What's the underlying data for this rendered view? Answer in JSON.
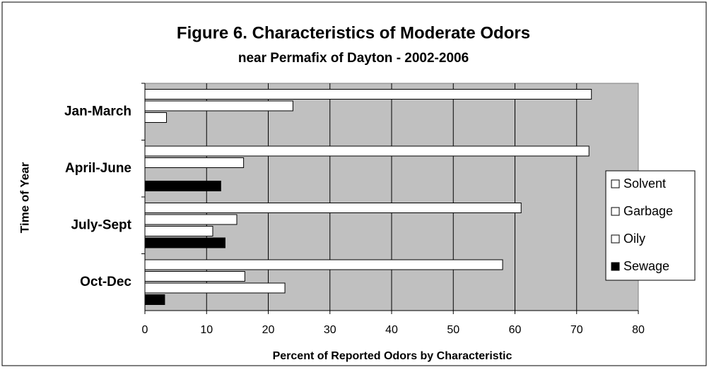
{
  "chart_data": {
    "type": "barh",
    "title": "Figure 6. Characteristics of Moderate Odors",
    "subtitle": "near Permafix of Dayton - 2002-2006",
    "x_label": "Percent of Reported Odors by Characteristic",
    "y_label": "Time of Year",
    "categories": [
      "Jan-March",
      "April-June",
      "July-Sept",
      "Oct-Dec"
    ],
    "series": [
      {
        "name": "Solvent",
        "color": "#ffffff",
        "values": [
          72.4,
          72,
          61,
          58
        ]
      },
      {
        "name": "Garbage",
        "color": "#ffffff",
        "values": [
          24,
          16,
          14.9,
          16.2
        ]
      },
      {
        "name": "Oily",
        "color": "#ffffff",
        "values": [
          3.5,
          0,
          11,
          22.7
        ]
      },
      {
        "name": "Sewage",
        "color": "#000000",
        "values": [
          0,
          12.3,
          13,
          3.2
        ]
      }
    ],
    "xlim": [
      0,
      80
    ],
    "xticks": [
      0,
      10,
      20,
      30,
      40,
      50,
      60,
      70,
      80
    ],
    "grid": true,
    "legend": "right"
  }
}
